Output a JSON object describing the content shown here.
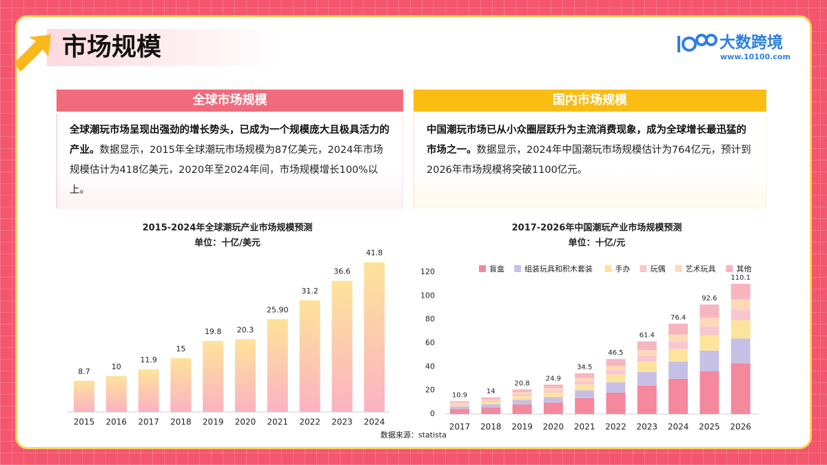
{
  "header": {
    "title": "市场规模",
    "logo": "大数跨境",
    "url": "www.10100.com"
  },
  "panels": [
    {
      "heading": "全球市场规模",
      "bold": "全球潮玩市场呈现出强劲的增长势头，已成为一个规模庞大且极具活力的产业。",
      "text": "数据显示，2015年全球潮玩市场规模为87亿美元，2024年市场规模估计为418亿美元，2020年至2024年间，市场规模增长100%以上。"
    },
    {
      "heading": "国内市场规模",
      "bold": "中国潮玩市场已从小众圈层跃升为主流消费现象，成为全球增长最迅猛的市场之一。",
      "text": "数据显示，2024年中国潮玩市场规模估计为764亿元，预计到2026年市场规模将突破1100亿元。"
    }
  ],
  "source": "数据来源：statista",
  "chart_data": [
    {
      "type": "bar",
      "title": "2015-2024年全球潮玩产业市场规模预测",
      "subtitle": "单位：十亿/美元",
      "categories": [
        "2015",
        "2016",
        "2017",
        "2018",
        "2019",
        "2020",
        "2021",
        "2022",
        "2023",
        "2024"
      ],
      "values": [
        8.7,
        10,
        11.9,
        15,
        19.8,
        20.3,
        25.9,
        31.2,
        36.6,
        41.8
      ],
      "value_labels": [
        "8.7",
        "10",
        "11.9",
        "15",
        "19.8",
        "20.3",
        "25.90",
        "31.2",
        "36.6",
        "41.8"
      ],
      "colors": [
        "#fde39a",
        "#fbb2c2"
      ]
    },
    {
      "type": "bar",
      "stacked": true,
      "title": "2017-2026年中国潮玩产业市场规模预测",
      "subtitle": "单位：十亿/元",
      "categories": [
        "2017",
        "2018",
        "2019",
        "2020",
        "2021",
        "2022",
        "2023",
        "2024",
        "2025",
        "2026"
      ],
      "ylim": [
        0,
        120
      ],
      "yticks": [
        0,
        20,
        40,
        60,
        80,
        100,
        120
      ],
      "series": [
        {
          "name": "盲盒",
          "color": "#f4889c",
          "values": [
            4.3,
            5.5,
            8.1,
            9.7,
            13.5,
            18.1,
            23.9,
            29.8,
            36.1,
            42.9
          ]
        },
        {
          "name": "组装玩具和积木套装",
          "color": "#c7c0e6",
          "values": [
            2.1,
            2.7,
            4.0,
            4.7,
            6.6,
            8.8,
            11.7,
            14.5,
            17.6,
            20.9
          ]
        },
        {
          "name": "手办",
          "color": "#fde49c",
          "values": [
            1.5,
            2.0,
            2.9,
            3.5,
            4.8,
            6.5,
            8.6,
            10.7,
            13.0,
            15.4
          ]
        },
        {
          "name": "玩偶",
          "color": "#f9c6d0",
          "values": [
            0.9,
            1.1,
            1.7,
            2.0,
            2.8,
            3.7,
            4.9,
            6.1,
            7.4,
            8.8
          ]
        },
        {
          "name": "艺术玩具",
          "color": "#fcd9b8",
          "values": [
            0.9,
            1.1,
            1.7,
            2.0,
            2.8,
            3.7,
            4.9,
            6.1,
            7.4,
            8.8
          ]
        },
        {
          "name": "其他",
          "color": "#f7b5c0",
          "values": [
            1.2,
            1.6,
            2.4,
            3.0,
            4.0,
            5.7,
            7.4,
            9.2,
            11.1,
            13.3
          ]
        }
      ],
      "totals": [
        10.9,
        14,
        20.8,
        24.9,
        34.5,
        46.5,
        61.4,
        76.4,
        92.6,
        110.1
      ]
    }
  ]
}
